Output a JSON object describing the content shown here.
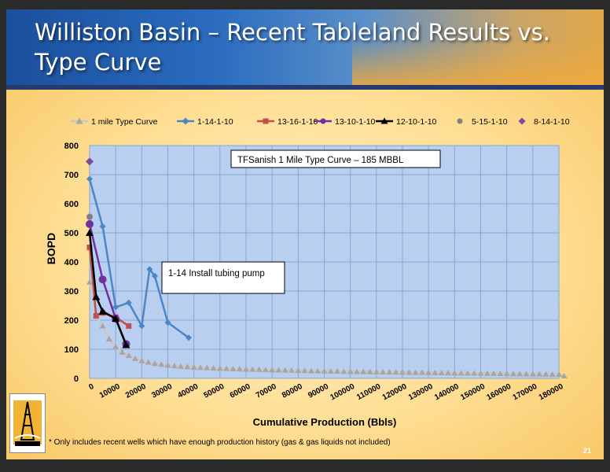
{
  "slide": {
    "title": "Williston Basin – Recent Tableland Results vs. Type Curve",
    "footnote": "* Only includes recent wells which have enough production history (gas & gas liquids not included)",
    "page_number": "21"
  },
  "chart_data": {
    "type": "line",
    "xlabel": "Cumulative Production (Bbls)",
    "ylabel": "BOPD",
    "xlim": [
      0,
      180000
    ],
    "ylim": [
      0,
      800
    ],
    "x_ticks": [
      0,
      10000,
      20000,
      30000,
      40000,
      50000,
      60000,
      70000,
      80000,
      90000,
      100000,
      110000,
      120000,
      130000,
      140000,
      150000,
      160000,
      170000,
      180000
    ],
    "y_ticks": [
      0,
      100,
      200,
      300,
      400,
      500,
      600,
      700,
      800
    ],
    "grid": true,
    "legend_position": "top",
    "annotations": [
      {
        "text": "TFSanish 1 Mile Type Curve – 185 MBBL",
        "x": 58000,
        "y": 745
      },
      {
        "text": "1-14 Install  tubing pump",
        "x": 28000,
        "y": 360
      }
    ],
    "series": [
      {
        "name": "1 mile Type Curve",
        "color": "#c8c8c8",
        "marker": "triangle",
        "points": [
          [
            0,
            330
          ],
          [
            2500,
            215
          ],
          [
            5000,
            180
          ],
          [
            7500,
            135
          ],
          [
            10000,
            108
          ],
          [
            12500,
            90
          ],
          [
            15000,
            78
          ],
          [
            17500,
            68
          ],
          [
            20000,
            60
          ],
          [
            22500,
            55
          ],
          [
            25000,
            51
          ],
          [
            27500,
            48
          ],
          [
            30000,
            45
          ],
          [
            32500,
            43
          ],
          [
            35000,
            41
          ],
          [
            37500,
            39.5
          ],
          [
            40000,
            38
          ],
          [
            42500,
            37
          ],
          [
            45000,
            36
          ],
          [
            47500,
            35
          ],
          [
            50000,
            34
          ],
          [
            52500,
            33.3
          ],
          [
            55000,
            32.6
          ],
          [
            57500,
            31.9
          ],
          [
            60000,
            31.2
          ],
          [
            62500,
            30.6
          ],
          [
            65000,
            30
          ],
          [
            67500,
            29.4
          ],
          [
            70000,
            28.8
          ],
          [
            72500,
            28.3
          ],
          [
            75000,
            27.8
          ],
          [
            77500,
            27.3
          ],
          [
            80000,
            26.8
          ],
          [
            82500,
            26.3
          ],
          [
            85000,
            25.8
          ],
          [
            87500,
            25.4
          ],
          [
            90000,
            25
          ],
          [
            92500,
            24.6
          ],
          [
            95000,
            24.2
          ],
          [
            97500,
            23.8
          ],
          [
            100000,
            23.4
          ],
          [
            102500,
            23
          ],
          [
            105000,
            22.6
          ],
          [
            107500,
            22.2
          ],
          [
            110000,
            21.9
          ],
          [
            112500,
            21.6
          ],
          [
            115000,
            21.3
          ],
          [
            117500,
            21
          ],
          [
            120000,
            20.7
          ],
          [
            122500,
            20.4
          ],
          [
            125000,
            20.1
          ],
          [
            127500,
            19.8
          ],
          [
            130000,
            19.5
          ],
          [
            132500,
            19.2
          ],
          [
            135000,
            18.9
          ],
          [
            137500,
            18.6
          ],
          [
            140000,
            18.3
          ],
          [
            142500,
            18
          ],
          [
            145000,
            17.7
          ],
          [
            147500,
            17.4
          ],
          [
            150000,
            17.1
          ],
          [
            152500,
            16.8
          ],
          [
            155000,
            16.5
          ],
          [
            157500,
            16.2
          ],
          [
            160000,
            15.9
          ],
          [
            162500,
            15.6
          ],
          [
            165000,
            15.3
          ],
          [
            167500,
            15
          ],
          [
            170000,
            14.7
          ],
          [
            172500,
            14.4
          ],
          [
            175000,
            14.1
          ],
          [
            177500,
            13.8
          ],
          [
            180000,
            13.5
          ],
          [
            182000,
            8
          ]
        ]
      },
      {
        "name": "1-14-1-10",
        "color": "#4a86c8",
        "marker": "diamond",
        "points": [
          [
            0,
            685
          ],
          [
            5000,
            522
          ],
          [
            10000,
            245
          ],
          [
            15000,
            260
          ],
          [
            20000,
            180
          ],
          [
            23000,
            375
          ],
          [
            25000,
            352
          ],
          [
            30000,
            192
          ],
          [
            38000,
            140
          ]
        ]
      },
      {
        "name": "13-16-1-10",
        "color": "#c0504d",
        "marker": "square",
        "points": [
          [
            0,
            450
          ],
          [
            2500,
            215
          ],
          [
            5000,
            225
          ],
          [
            10000,
            210
          ],
          [
            15000,
            180
          ]
        ]
      },
      {
        "name": "13-10-1-10",
        "color": "#7030a0",
        "marker": "circle",
        "points": [
          [
            0,
            530
          ],
          [
            5000,
            340
          ],
          [
            10000,
            205
          ],
          [
            14000,
            118
          ]
        ]
      },
      {
        "name": "12-10-1-10",
        "color": "#000000",
        "marker": "triangle",
        "points": [
          [
            0,
            500
          ],
          [
            2500,
            280
          ],
          [
            5000,
            230
          ],
          [
            10000,
            205
          ],
          [
            14000,
            115
          ]
        ]
      },
      {
        "name": "5-15-1-10",
        "color": "#808080",
        "marker": "circle",
        "points": [
          [
            0,
            555
          ]
        ]
      },
      {
        "name": "8-14-1-10",
        "color": "#7b4a9b",
        "marker": "diamond",
        "points": [
          [
            0,
            745
          ]
        ]
      }
    ]
  }
}
